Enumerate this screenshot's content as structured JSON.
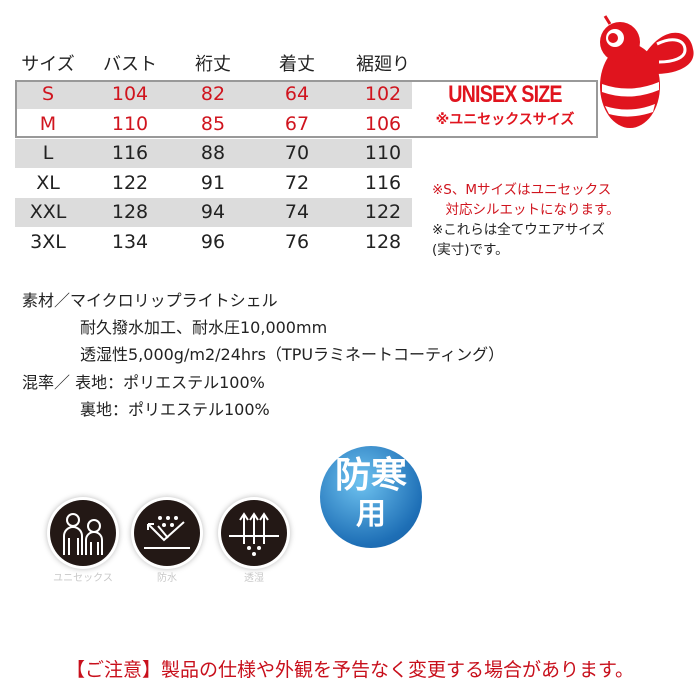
{
  "size_table": {
    "headers": [
      "サイズ",
      "バスト",
      "裄丈",
      "着丈",
      "裾廻り"
    ],
    "rows": [
      [
        "S",
        "104",
        "82",
        "64",
        "102"
      ],
      [
        "M",
        "110",
        "85",
        "67",
        "106"
      ],
      [
        "L",
        "116",
        "88",
        "70",
        "110"
      ],
      [
        "XL",
        "122",
        "91",
        "72",
        "116"
      ],
      [
        "XXL",
        "128",
        "94",
        "74",
        "122"
      ],
      [
        "3XL",
        "134",
        "96",
        "76",
        "128"
      ]
    ]
  },
  "unisex": {
    "title": "UNISEX SIZE",
    "subtitle": "※ユニセックスサイズ"
  },
  "notes": [
    "※S、Mサイズはユニセックス",
    "　対応シルエットになります。",
    "※これらは全てウエアサイズ",
    "(実寸)です。"
  ],
  "material": {
    "lines": [
      "素材／マイクロリップライトシェル",
      "耐久撥水加工、耐水圧10,000mm",
      "透湿性5,000g/m2/24hrs（TPUラミネートコーティング）",
      "混率／ 表地：ポリエステル100%",
      "裏地：ポリエステル100%"
    ]
  },
  "features": [
    {
      "icon": "unisex-people-icon",
      "label": "ユニセックス"
    },
    {
      "icon": "waterproof-icon",
      "label": "防水"
    },
    {
      "icon": "breathable-icon",
      "label": "透湿"
    }
  ],
  "cold_badge": {
    "line1": "防寒",
    "line2": "用"
  },
  "footer": "【ご注意】製品の仕様や外観を予告なく変更する場合があります。",
  "colors": {
    "accent_red": "#d0141e",
    "row_gray": "#dcdcdc",
    "badge_blue": "#1e6fb6"
  }
}
